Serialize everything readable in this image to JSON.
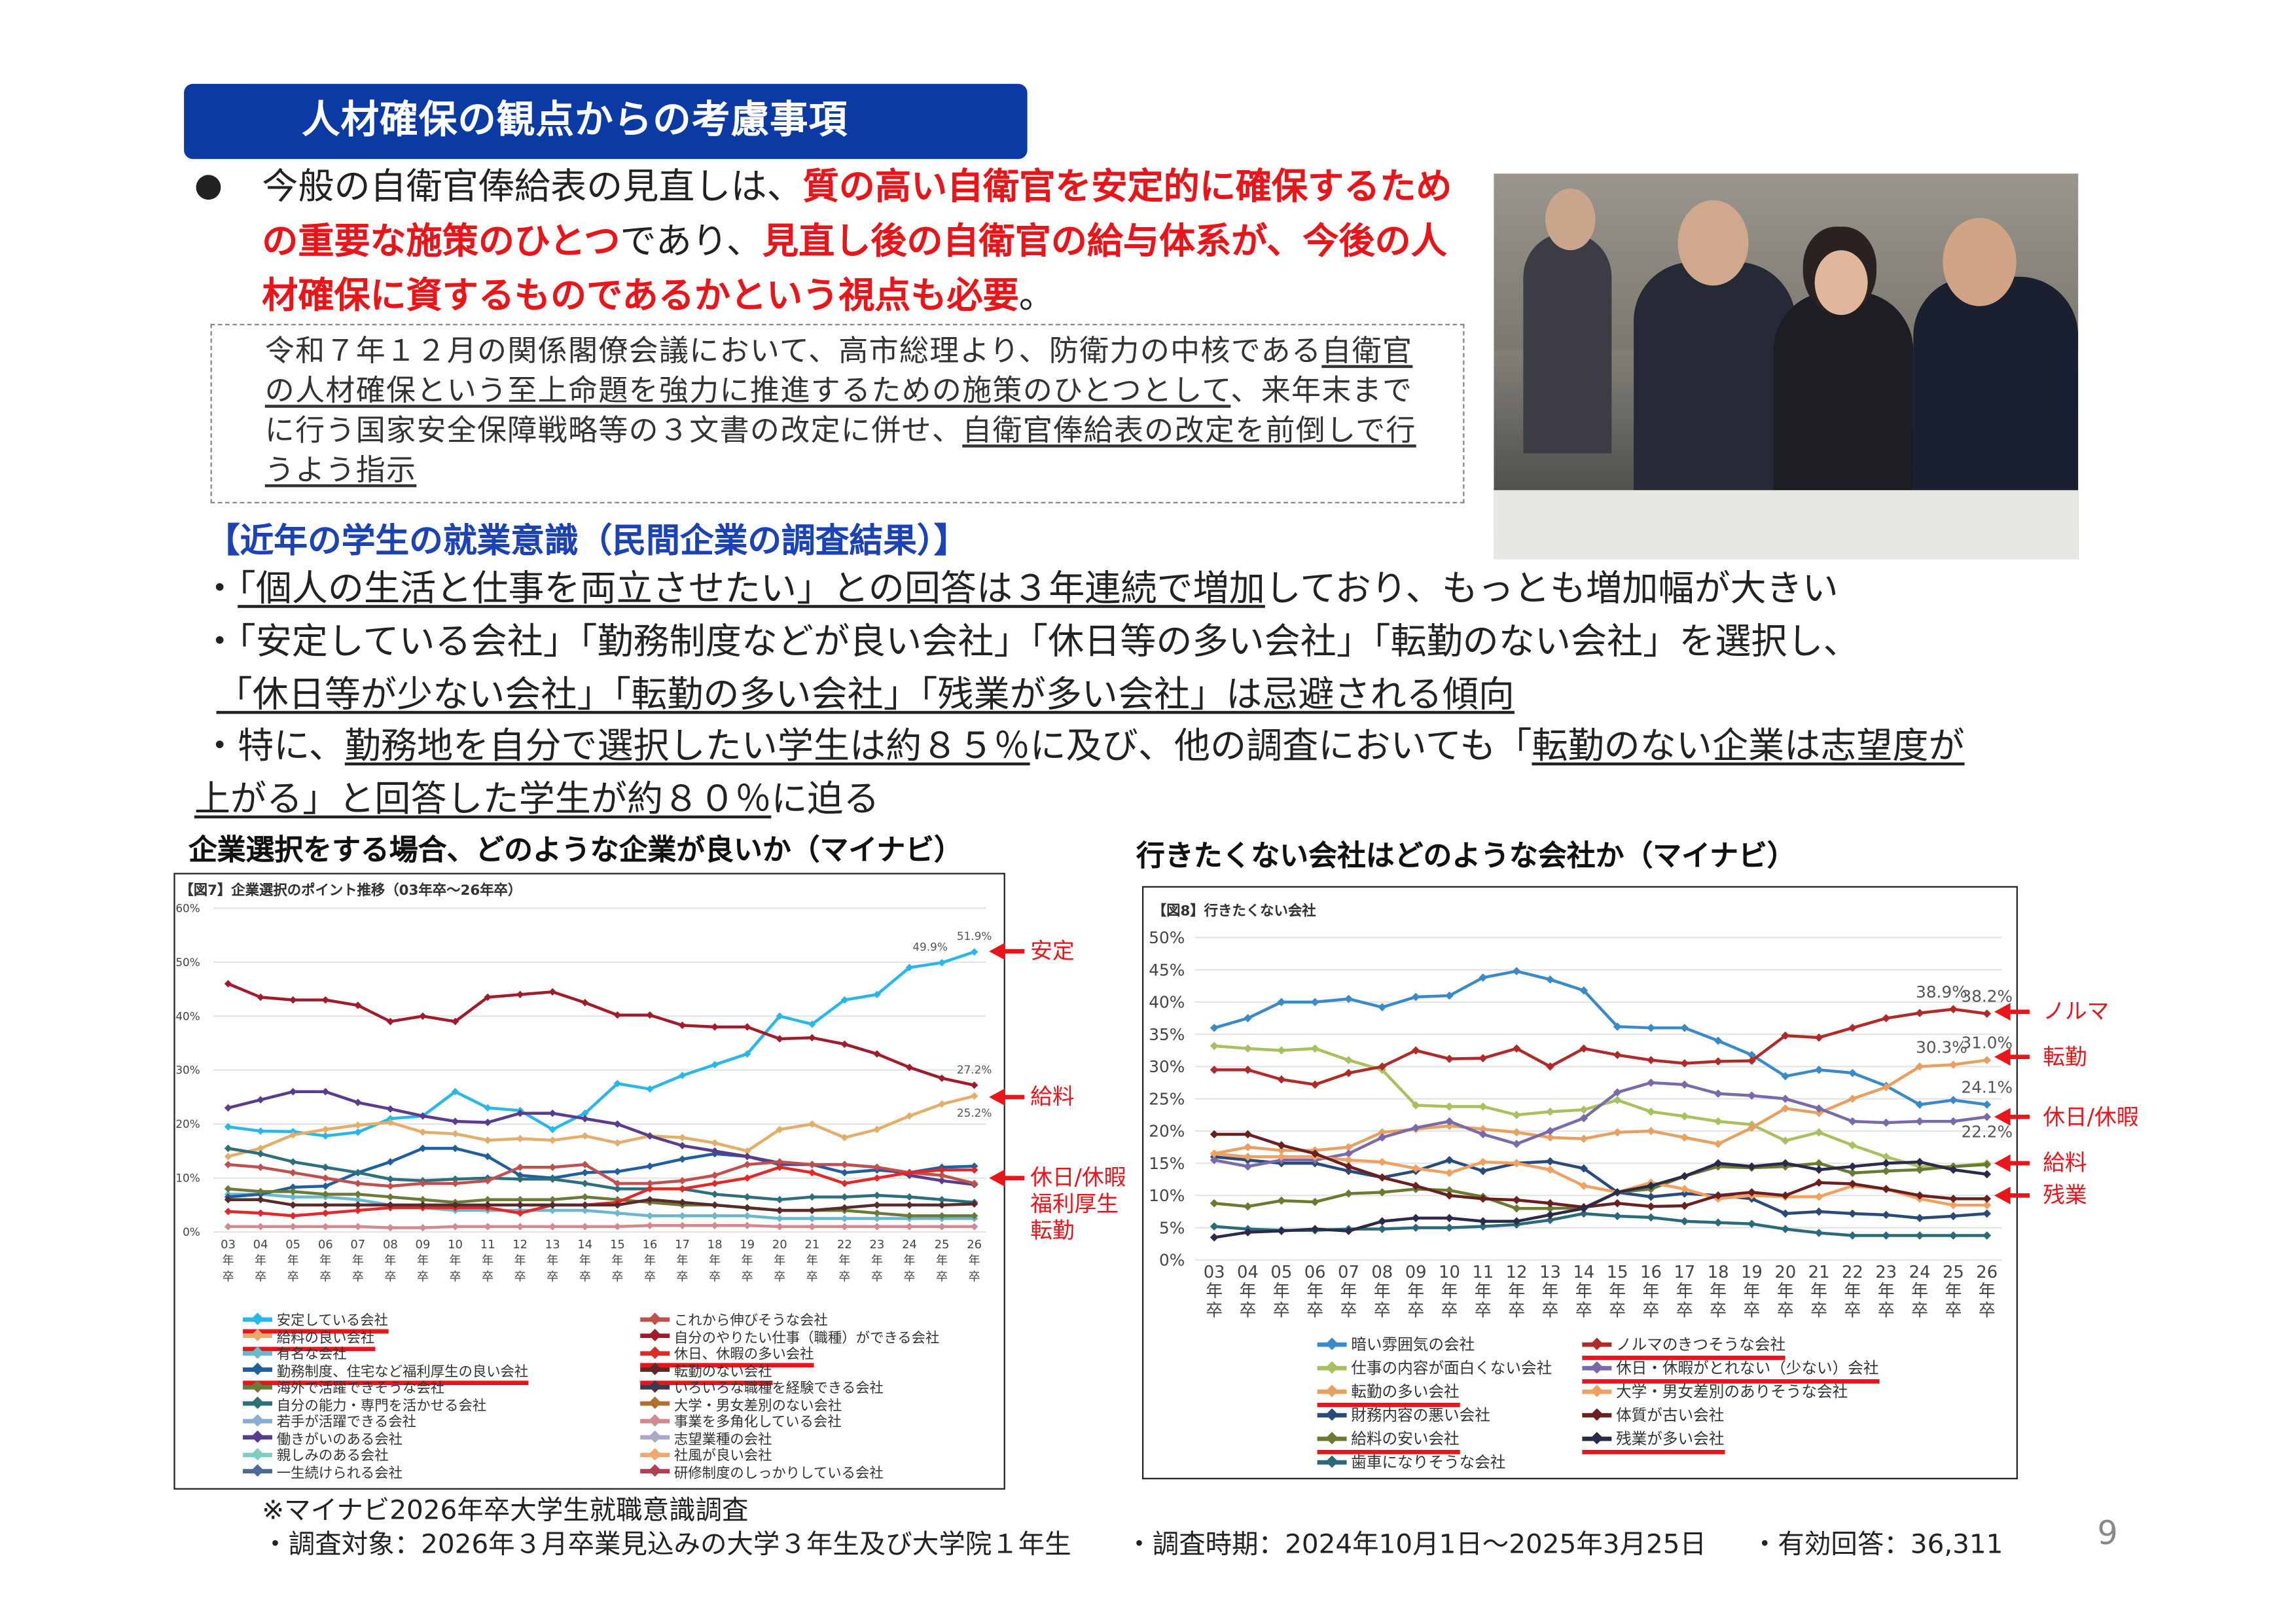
{
  "title": "人材確保の観点からの考慮事項",
  "intro": {
    "bullet": "●",
    "segments": [
      {
        "t": "今般の自衛官俸給表の見直しは、",
        "red": false
      },
      {
        "t": "質の高い自衛官を安定的に確保するための重要な施策のひとつ",
        "red": true
      },
      {
        "t": "であり、",
        "red": false
      },
      {
        "t": "見直し後の自衛官の給与体系が、今後の人材確保に資するものであるかという視点も必要",
        "red": true
      },
      {
        "t": "。",
        "red": false
      }
    ]
  },
  "note_box": {
    "segments": [
      {
        "t": "令和７年１２月の関係閣僚会議において、高市総理より、防衛力の中核である",
        "u": false
      },
      {
        "t": "自衛官の人材確保という至上命題を強力に推進するための施策のひとつとして",
        "u": true
      },
      {
        "t": "、来年末までに行う国家安全保障戦略等の３文書の改定に併せ、",
        "u": false
      },
      {
        "t": "自衛官俸給表の改定を前倒しで行うよう指示",
        "u": true
      }
    ]
  },
  "section_heading": "【近年の学生の就業意識（民間企業の調査結果）】",
  "bullets": [
    [
      {
        "t": "・",
        "u": false
      },
      {
        "t": "「個人の生活と仕事を両立させたい」との回答は３年連続で増加",
        "u": true
      },
      {
        "t": "しており、もっとも増加幅が大きい",
        "u": false
      }
    ],
    [
      {
        "t": "・「安定している会社」「勤務制度などが良い会社」「休日等の多い会社」「転勤のない会社」を選択し、",
        "u": false
      }
    ],
    [
      {
        "t": "「休日等が少ない会社」「転勤の多い会社」「残業が多い会社」は忌避される傾向",
        "u": true
      }
    ],
    [
      {
        "t": "・特に、",
        "u": false
      },
      {
        "t": "勤務地を自分で選択したい学生は約８５％",
        "u": true
      },
      {
        "t": "に及び、他の調査においても「",
        "u": false
      },
      {
        "t": "転勤のない企業は志望度が",
        "u": true
      }
    ],
    [
      {
        "t": "上がる」と回答した学生が約８０％",
        "u": true
      },
      {
        "t": "に迫る",
        "u": false
      }
    ]
  ],
  "chart_titles": [
    "企業選択をする場合、どのような企業が良いか（マイナビ）",
    "行きたくない会社はどのような会社か（マイナビ）"
  ],
  "chart_data": [
    {
      "type": "line",
      "title": "【図7】企業選択のポイント推移（03年卒～26年卒）",
      "ylim": [
        0,
        60
      ],
      "yticks": [
        "0%",
        "10%",
        "20%",
        "30%",
        "40%",
        "50%",
        "60%"
      ],
      "categories": [
        "03",
        "04",
        "05",
        "06",
        "07",
        "08",
        "09",
        "10",
        "11",
        "12",
        "13",
        "14",
        "15",
        "16",
        "17",
        "18",
        "19",
        "20",
        "21",
        "22",
        "23",
        "24",
        "25",
        "26"
      ],
      "x_suffix": [
        "年",
        "卒"
      ],
      "series": [
        {
          "name": "安定している会社",
          "color": "#29b6e8",
          "highlight": true,
          "values": [
            19.5,
            18.7,
            18.6,
            17.8,
            18.5,
            21,
            21.5,
            26,
            23,
            22.5,
            19,
            22,
            27.5,
            26.5,
            29,
            31,
            33,
            40,
            38.5,
            43,
            44,
            49,
            49.9,
            51.9
          ]
        },
        {
          "name": "給料の良い会社",
          "color": "#e3ad6a",
          "highlight": true,
          "values": [
            14,
            15.5,
            18,
            19,
            19.8,
            20.3,
            18.5,
            18.2,
            17,
            17.3,
            17,
            17.8,
            16.5,
            17.8,
            17.5,
            16.5,
            15,
            19,
            20,
            17.5,
            19,
            21.5,
            23.7,
            25.2
          ]
        },
        {
          "name": "有名な会社",
          "color": "#6ab8d0",
          "highlight": false,
          "values": [
            7,
            7,
            6.5,
            6.5,
            6,
            5,
            4.5,
            4,
            4,
            4,
            4,
            4,
            3.5,
            3,
            3,
            3,
            3,
            2.5,
            2.5,
            2.5,
            2.5,
            2.5,
            2.5,
            2.5
          ]
        },
        {
          "name": "勤務制度、住宅など福利厚生の良い会社",
          "color": "#1f5fa0",
          "highlight": true,
          "values": [
            6.5,
            7,
            8.3,
            8.5,
            11,
            13,
            15.5,
            15.5,
            14,
            10.5,
            10,
            11,
            11.2,
            12.2,
            13.5,
            14.5,
            14,
            12.5,
            12.5,
            11,
            11.5,
            11,
            12,
            12.2
          ]
        },
        {
          "name": "海外で活躍できそうな会社",
          "color": "#6b7a3a",
          "highlight": false,
          "values": [
            8,
            7.5,
            7.5,
            7,
            7,
            6.5,
            6,
            5.5,
            6,
            6,
            6,
            6.5,
            6,
            5.5,
            5,
            5,
            4.5,
            4,
            4,
            4,
            3.5,
            3,
            3,
            3
          ]
        },
        {
          "name": "自分の能力・専門を活かせる会社",
          "color": "#2d6f7a",
          "highlight": false,
          "values": [
            15.5,
            14.5,
            13,
            12,
            11,
            9.8,
            9.5,
            9.8,
            10,
            9.8,
            9.8,
            9,
            8,
            8,
            8,
            7,
            6.5,
            6,
            6.5,
            6.5,
            6.8,
            6.5,
            6,
            5.5
          ]
        },
        {
          "name": "若手が活躍できる会社",
          "color": "#8aaed0",
          "highlight": false,
          "values": null
        },
        {
          "name": "働きがいのある会社",
          "color": "#5a3c8c",
          "highlight": false,
          "values": [
            23,
            24.5,
            26,
            26,
            24,
            22.8,
            21.5,
            20.5,
            20.3,
            22,
            22,
            21,
            20,
            17.8,
            16,
            15,
            14,
            12.8,
            12.5,
            12.5,
            12,
            10.5,
            9.5,
            8.8
          ]
        },
        {
          "name": "親しみのある会社",
          "color": "#7ccfc0",
          "highlight": false,
          "values": null
        },
        {
          "name": "一生続けられる会社",
          "color": "#4a6a9a",
          "highlight": false,
          "values": null
        },
        {
          "name": "これから伸びそうな会社",
          "color": "#c05050",
          "highlight": false,
          "values": [
            12.5,
            12,
            11,
            10,
            9,
            8.5,
            9,
            9,
            9.5,
            12,
            12,
            12.5,
            9,
            9,
            9.5,
            10.5,
            12.5,
            13,
            12.5,
            12.5,
            12,
            11,
            10.5,
            9
          ]
        },
        {
          "name": "自分のやりたい仕事（職種）ができる会社",
          "color": "#a01c2c",
          "highlight": false,
          "values": [
            46,
            43.5,
            43,
            43,
            42,
            39,
            40,
            39,
            43.5,
            44,
            44.5,
            42.5,
            40.2,
            40.2,
            38.3,
            38,
            38,
            35.8,
            36,
            34.8,
            33,
            30.5,
            28.5,
            27.2
          ]
        },
        {
          "name": "休日、休暇の多い会社",
          "color": "#e02a2a",
          "highlight": true,
          "values": [
            3.8,
            3.5,
            3,
            3.5,
            4,
            4.5,
            4.5,
            4.5,
            4.5,
            3.5,
            5,
            5,
            5.5,
            8,
            8,
            9,
            10,
            12,
            11,
            9,
            10,
            11,
            11.5,
            11.5
          ]
        },
        {
          "name": "転勤のない会社",
          "color": "#5a2a2a",
          "highlight": true,
          "values": [
            6,
            6,
            5,
            5,
            5,
            5,
            5,
            5,
            5,
            5,
            5,
            5,
            5,
            6,
            5.5,
            5,
            4.5,
            4,
            4,
            4.5,
            5,
            5,
            5,
            5.2
          ]
        },
        {
          "name": "いろいろな職種を経験できる会社",
          "color": "#3a3a4a",
          "highlight": false,
          "values": null
        },
        {
          "name": "大学・男女差別のない会社",
          "color": "#b0702a",
          "highlight": false,
          "values": null
        },
        {
          "name": "事業を多角化している会社",
          "color": "#d08a90",
          "highlight": false,
          "values": [
            1,
            1,
            1,
            1,
            1,
            0.8,
            0.8,
            1,
            1,
            1,
            1,
            1,
            1,
            1.2,
            1.2,
            1.2,
            1.2,
            1,
            1,
            1,
            1,
            1,
            1,
            1
          ]
        },
        {
          "name": "志望業種の会社",
          "color": "#a8a8c8",
          "highlight": false,
          "values": null
        },
        {
          "name": "社風が良い会社",
          "color": "#f0a870",
          "highlight": false,
          "values": null
        },
        {
          "name": "研修制度のしっかりしている会社",
          "color": "#b04050",
          "highlight": false,
          "values": null
        }
      ],
      "value_labels": [
        {
          "text": "51.9%",
          "series": 0,
          "index": 23
        },
        {
          "text": "49.9%",
          "series": 0,
          "index": 22
        },
        {
          "text": "27.2%",
          "series": 11,
          "index": 23
        },
        {
          "text": "25.2%",
          "series": 1,
          "index": 23
        }
      ],
      "annotations": [
        {
          "lines": [
            "安定"
          ],
          "at_value": 52
        },
        {
          "lines": [
            "給料"
          ],
          "at_value": 25
        },
        {
          "lines": [
            "休日/休暇",
            "福利厚生",
            "転勤"
          ],
          "at_value": 10
        }
      ]
    },
    {
      "type": "line",
      "title": "【図8】行きたくない会社",
      "ylim": [
        0,
        50
      ],
      "yticks": [
        "0%",
        "5%",
        "10%",
        "15%",
        "20%",
        "25%",
        "30%",
        "35%",
        "40%",
        "45%",
        "50%"
      ],
      "categories": [
        "03",
        "04",
        "05",
        "06",
        "07",
        "08",
        "09",
        "10",
        "11",
        "12",
        "13",
        "14",
        "15",
        "16",
        "17",
        "18",
        "19",
        "20",
        "21",
        "22",
        "23",
        "24",
        "25",
        "26"
      ],
      "x_suffix": [
        "年",
        "卒"
      ],
      "series": [
        {
          "name": "暗い雰囲気の会社",
          "color": "#3a8ac8",
          "highlight": false,
          "values": [
            36,
            37.5,
            40,
            40,
            40.5,
            39.2,
            40.8,
            41,
            43.8,
            44.8,
            43.5,
            41.8,
            36.2,
            36,
            36,
            34,
            31.8,
            28.5,
            29.5,
            29,
            27,
            24.1,
            24.8,
            24.1
          ]
        },
        {
          "name": "仕事の内容が面白くない会社",
          "color": "#a8c060",
          "highlight": false,
          "values": [
            33.2,
            32.8,
            32.5,
            32.8,
            31,
            29.5,
            24,
            23.8,
            23.8,
            22.5,
            23,
            23.3,
            24.8,
            23,
            22.3,
            21.5,
            21,
            18.5,
            19.8,
            17.8,
            16,
            14.5,
            14.5,
            15
          ]
        },
        {
          "name": "転勤の多い会社",
          "color": "#e8a060",
          "highlight": true,
          "values": [
            16.5,
            17.5,
            17,
            17,
            17.5,
            19.8,
            20.3,
            20.8,
            20.3,
            19.8,
            19,
            18.8,
            19.8,
            20,
            19,
            18,
            20.5,
            23.5,
            22.8,
            25,
            26.8,
            30,
            30.3,
            31.0
          ]
        },
        {
          "name": "財務内容の悪い会社",
          "color": "#2a4a7a",
          "highlight": false,
          "values": [
            16,
            15.5,
            15,
            15,
            13.8,
            12.8,
            13.8,
            15.5,
            13.8,
            15,
            15.3,
            14.2,
            10.5,
            9.8,
            10.3,
            10,
            9.5,
            7.2,
            7.5,
            7.2,
            7,
            6.5,
            6.8,
            7.2
          ]
        },
        {
          "name": "給料の安い会社",
          "color": "#6a7a30",
          "highlight": true,
          "values": [
            8.8,
            8.3,
            9.2,
            9,
            10.3,
            10.5,
            11,
            10.8,
            9.8,
            8,
            8,
            8.1,
            10.5,
            11,
            13,
            14.5,
            14.3,
            14.5,
            15,
            13.5,
            13.8,
            14,
            14.5,
            14.8
          ]
        },
        {
          "name": "歯車になりそうな会社",
          "color": "#2a6a7a",
          "highlight": false,
          "values": [
            5.2,
            4.8,
            4.6,
            4.6,
            4.8,
            4.8,
            5,
            5,
            5.2,
            5.5,
            6.2,
            7.2,
            6.8,
            6.6,
            6,
            5.8,
            5.6,
            4.8,
            4.2,
            3.8,
            3.8,
            3.8,
            3.8,
            3.8
          ]
        },
        {
          "name": "ノルマのきつそうな会社",
          "color": "#b02a2a",
          "highlight": true,
          "values": [
            29.5,
            29.5,
            28,
            27.2,
            29,
            30,
            32.5,
            31.2,
            31.3,
            32.8,
            30,
            32.8,
            31.8,
            31,
            30.5,
            30.8,
            30.9,
            34.8,
            34.5,
            36,
            37.5,
            38.3,
            38.9,
            38.2
          ]
        },
        {
          "name": "休日・休暇がとれない（少ない）会社",
          "color": "#7a6aaa",
          "highlight": true,
          "values": [
            15.5,
            14.5,
            15.5,
            15.5,
            16.5,
            19,
            20.5,
            21.5,
            19.5,
            18,
            20,
            22,
            26,
            27.5,
            27.2,
            25.8,
            25.5,
            25,
            23.5,
            21.5,
            21.3,
            21.5,
            21.5,
            22.2
          ]
        },
        {
          "name": "大学・男女差別のありそうな会社",
          "color": "#f0a060",
          "highlight": false,
          "values": [
            16.5,
            16,
            16,
            16,
            15.5,
            15.2,
            14.2,
            13.5,
            15.2,
            15,
            14,
            11.5,
            10.5,
            12,
            11,
            9.5,
            10,
            9.8,
            9.8,
            11.5,
            11,
            9.5,
            8.5,
            8.5
          ]
        },
        {
          "name": "体質が古い会社",
          "color": "#6a2020",
          "highlight": false,
          "values": [
            19.5,
            19.5,
            17.8,
            16.5,
            14.5,
            12.8,
            11.5,
            10,
            9.5,
            9.3,
            8.8,
            8.2,
            8.8,
            8.3,
            8.4,
            10,
            10.5,
            10,
            12,
            11.8,
            11,
            10,
            9.5,
            9.5
          ]
        },
        {
          "name": "残業が多い会社",
          "color": "#2a2a4a",
          "highlight": true,
          "values": [
            3.5,
            4.3,
            4.5,
            4.8,
            4.5,
            6,
            6.5,
            6.5,
            6,
            6,
            7,
            8,
            10.5,
            11.5,
            13,
            15,
            14.5,
            15,
            14,
            14.5,
            15,
            15.2,
            14,
            13.3
          ]
        }
      ],
      "value_labels": [
        {
          "text": "38.2%",
          "series": 6,
          "index": 23
        },
        {
          "text": "38.9%",
          "series": 6,
          "index": 22
        },
        {
          "text": "31.0%",
          "series": 2,
          "index": 23
        },
        {
          "text": "30.3%",
          "series": 2,
          "index": 22
        },
        {
          "text": "24.1%",
          "series": 0,
          "index": 23
        },
        {
          "text": "22.2%",
          "series": 7,
          "index": 23
        }
      ],
      "annotations": [
        {
          "lines": [
            "ノルマ"
          ],
          "at_value": 38.5
        },
        {
          "lines": [
            "転勤"
          ],
          "at_value": 31.5
        },
        {
          "lines": [
            "休日/休暇"
          ],
          "at_value": 22.2
        },
        {
          "lines": [
            "給料"
          ],
          "at_value": 15
        },
        {
          "lines": [
            "残業"
          ],
          "at_value": 10
        }
      ]
    }
  ],
  "footnote": {
    "source": "※マイナビ2026年卒大学生就職意識調査",
    "target": "・調査対象：2026年３月卒業見込みの大学３年生及び大学院１年生",
    "period": "・調査時期：2024年10月1日～2025年3月25日",
    "responses": "・有効回答：36,311"
  },
  "page_number": "9"
}
